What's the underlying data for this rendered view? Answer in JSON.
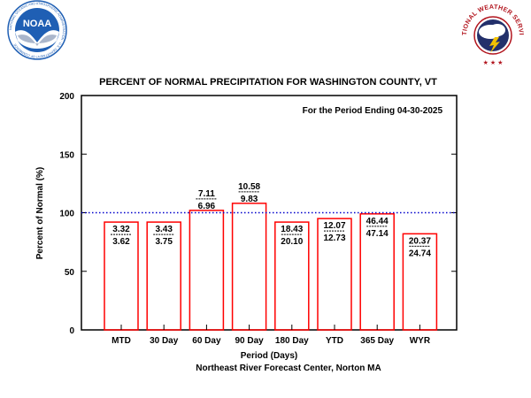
{
  "logos": {
    "noaa": {
      "center_text": "NOAA",
      "ring_text": "NATIONAL OCEANIC AND ATMOSPHERIC ADMINISTRATION · U.S. DEPARTMENT OF COMMERCE"
    },
    "nws": {
      "ring_text": "NATIONAL WEATHER SERVICE"
    }
  },
  "colors": {
    "bar_stroke": "#ff0000",
    "normal_line": "#0000cc",
    "axis": "#000000",
    "noaa_blue": "#1f5fb4",
    "noaa_dark": "#0b2e6b",
    "nws_red": "#b2151e",
    "nws_navy": "#23306b"
  },
  "chart_data": {
    "type": "bar",
    "title": "PERCENT OF NORMAL PRECIPITATION FOR WASHINGTON COUNTY, VT",
    "annotation": "For the Period Ending 04-30-2025",
    "xlabel": "Period (Days)",
    "ylabel": "Percent of Normal (%)",
    "footer": "Northeast River Forecast Center, Norton MA",
    "ylim": [
      0,
      200
    ],
    "yticks": [
      "0",
      "50",
      "100",
      "150",
      "200"
    ],
    "normal_line": 100,
    "grid": false,
    "categories": [
      "MTD",
      "30 Day",
      "60 Day",
      "90 Day",
      "180 Day",
      "YTD",
      "365 Day",
      "WYR"
    ],
    "values": [
      92,
      92,
      102,
      108,
      92,
      95,
      99,
      82
    ],
    "observed_labels": [
      "3.32",
      "3.43",
      "7.11",
      "10.58",
      "18.43",
      "12.07",
      "46.44",
      "20.37"
    ],
    "normal_labels": [
      "3.62",
      "3.75",
      "6.96",
      "9.83",
      "20.10",
      "12.73",
      "47.14",
      "24.74"
    ]
  }
}
